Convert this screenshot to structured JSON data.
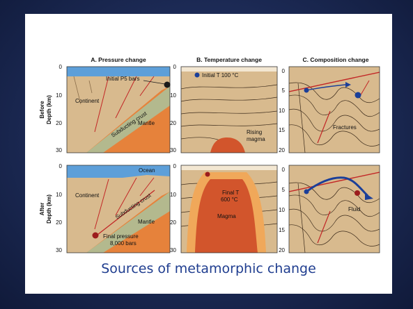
{
  "panels": {
    "a_title": "A. Pressure change",
    "b_title": "B. Temperature change",
    "c_title": "C. Composition change"
  },
  "rows": {
    "before": "Before",
    "after": "After",
    "depth_axis": "Depth (km)"
  },
  "ticks": {
    "depth_ab": [
      "0",
      "10",
      "20",
      "30"
    ],
    "depth_c": [
      "0",
      "5",
      "10",
      "15",
      "20"
    ]
  },
  "labels": {
    "initial_p": "Initial P5 bars",
    "continent": "Continent",
    "subducting_crust": "Subducting crust",
    "mantle": "Mantle",
    "ocean": "Ocean",
    "final_pressure": "Final pressure",
    "final_pressure_value": "8,000 bars",
    "initial_t": "Initial T 100 °C",
    "rising": "Rising",
    "magma_word": "magma",
    "final_t": "Final T",
    "final_t_value": "600 °C",
    "magma": "Magma",
    "fractures": "Fractures",
    "fluid": "Fluid"
  },
  "caption": "Sources of metamorphic change",
  "colors": {
    "background": "#1d2c56",
    "panel": "#ffffff",
    "caption": "#1f3d8f",
    "ocean": "#5d9fd9",
    "crust": "#d8ba8e",
    "subducting": "#b3b98e",
    "mantle": "#e6823b",
    "magma": "#d2552c",
    "halo": "#f0a85a",
    "fault": "#c22626",
    "fluid": "#1b3f99",
    "dot": "#9c1d1d"
  }
}
